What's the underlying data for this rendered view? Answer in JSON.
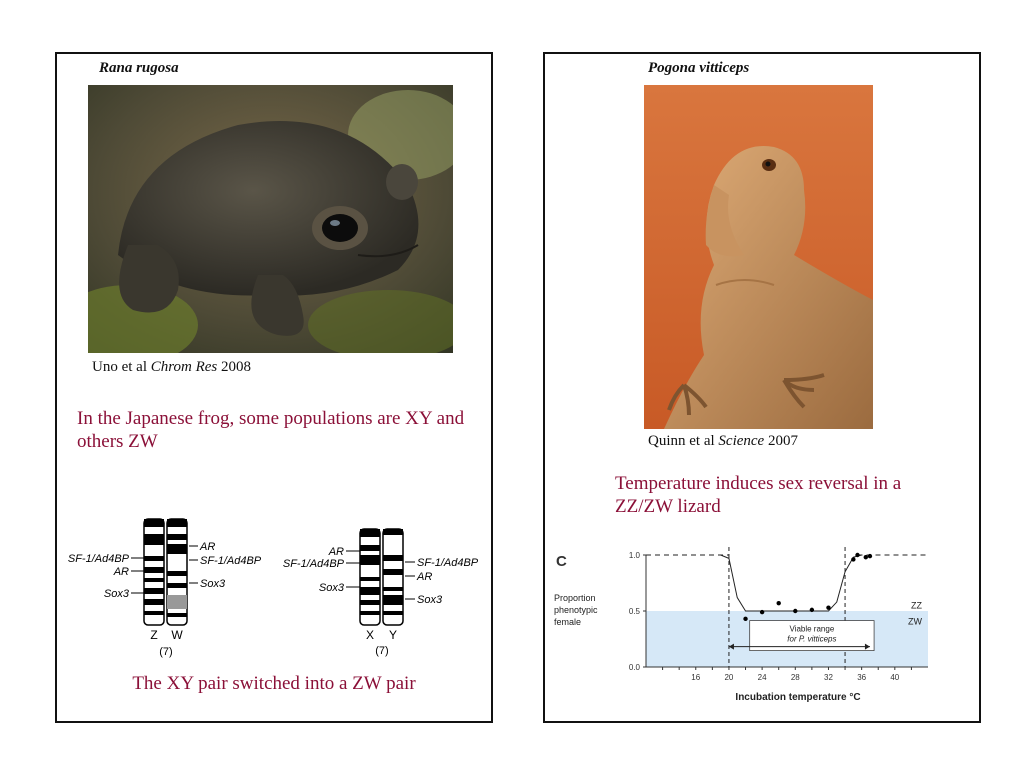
{
  "left": {
    "species": "Rana rugosa",
    "credit_author": "Uno et al ",
    "credit_journal": "Chrom Res",
    "credit_year": " 2008",
    "statement": "In the Japanese frog, some populations are XY and others ZW",
    "caption": "The XY pair switched into a ZW pair",
    "karyotype": {
      "zw": {
        "labels_left": [
          "SF-1/Ad4BP",
          "AR",
          "Sox3"
        ],
        "labels_right": [
          "AR",
          "SF-1/Ad4BP",
          "Sox3"
        ],
        "chrom_a": "Z",
        "chrom_b": "W",
        "number": "(7)"
      },
      "xy": {
        "labels_left": [
          "AR",
          "SF-1/Ad4BP",
          "Sox3"
        ],
        "labels_right": [
          "SF-1/Ad4BP",
          "AR",
          "Sox3"
        ],
        "chrom_a": "X",
        "chrom_b": "Y",
        "number": "(7)"
      }
    }
  },
  "right": {
    "species": "Pogona vitticeps",
    "credit_author": "Quinn et al ",
    "credit_journal": "Science",
    "credit_year": " 2007",
    "statement": "Temperature induces sex reversal in a ZZ/ZW lizard"
  },
  "chart_data": {
    "type": "scatter",
    "panel_label": "C",
    "xlabel": "Incubation temperature °C",
    "ylabel": "Proportion phenotypic female",
    "xlim": [
      10,
      44
    ],
    "ylim": [
      0,
      1
    ],
    "xticks": [
      16,
      20,
      24,
      28,
      32,
      36,
      40
    ],
    "yticks": [
      "0.0",
      "0.5",
      "1.0"
    ],
    "points": [
      {
        "x": 22,
        "y": 0.43
      },
      {
        "x": 24,
        "y": 0.49
      },
      {
        "x": 26,
        "y": 0.57
      },
      {
        "x": 28,
        "y": 0.5
      },
      {
        "x": 30,
        "y": 0.51
      },
      {
        "x": 32,
        "y": 0.53
      },
      {
        "x": 35,
        "y": 0.96
      },
      {
        "x": 35.5,
        "y": 1.0
      },
      {
        "x": 36.5,
        "y": 0.98
      },
      {
        "x": 37,
        "y": 0.99
      }
    ],
    "zw_region_max": 0.5,
    "band_labels": [
      "ZZ",
      "ZW"
    ],
    "viable_range": [
      20,
      37
    ],
    "viable_label": "Viable range",
    "viable_label2": "for P. vitticeps",
    "colors": {
      "zw_band": "#d6e8f7",
      "points": "#000000"
    }
  }
}
